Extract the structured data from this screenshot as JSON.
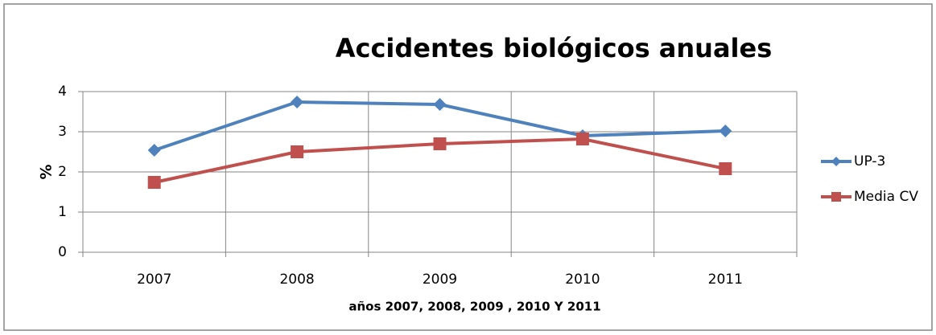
{
  "chart_data": {
    "type": "line",
    "title": "Accidentes biológicos anuales",
    "x_label": "años 2007, 2008, 2009 , 2010 Y 2011",
    "y_label": "%",
    "categories": [
      "2007",
      "2008",
      "2009",
      "2010",
      "2011"
    ],
    "series": [
      {
        "name": "UP-3",
        "color": "#4f81bd",
        "marker": "diamond",
        "values": [
          2.54,
          3.74,
          3.68,
          2.9,
          3.02
        ]
      },
      {
        "name": "Media CV",
        "color": "#c0504d",
        "marker": "square",
        "values": [
          1.74,
          2.5,
          2.7,
          2.82,
          2.08
        ]
      }
    ],
    "ylim": [
      0,
      4
    ],
    "yticks": [
      0,
      1,
      2,
      3,
      4
    ],
    "grid": true,
    "legend": "right"
  }
}
